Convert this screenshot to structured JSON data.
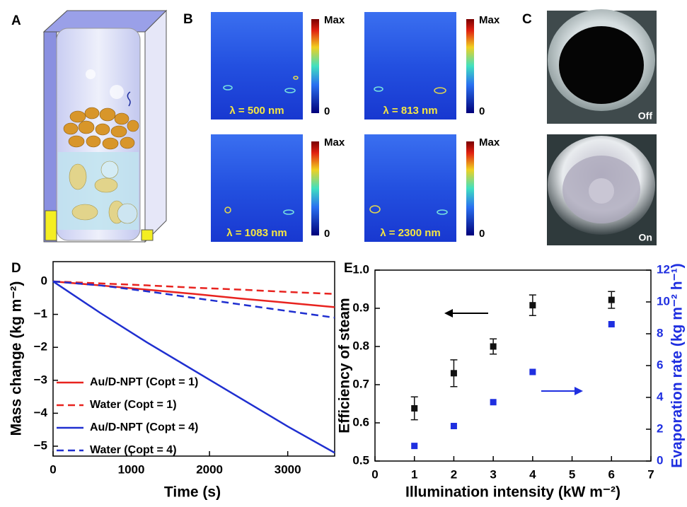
{
  "panel_labels": [
    "A",
    "B",
    "C",
    "D",
    "E"
  ],
  "panel_b": {
    "maps": [
      "λ = 500 nm",
      "λ = 813 nm",
      "λ = 1083 nm",
      "λ = 2300 nm"
    ],
    "colorbar": {
      "max": "Max",
      "min": "0"
    }
  },
  "panel_c": {
    "photos": [
      "Off",
      "On"
    ]
  },
  "chart_data": [
    {
      "type": "line",
      "xlabel": "Time (s)",
      "ylabel": "Mass change (kg m⁻²)",
      "x": [
        0,
        600,
        1200,
        1800,
        2400,
        3000,
        3600
      ],
      "series": [
        {
          "name": "Au/D-NPT (Copt = 1)",
          "color": "#e8231f",
          "style": "solid",
          "values": [
            0,
            -0.12,
            -0.25,
            -0.38,
            -0.52,
            -0.65,
            -0.78
          ]
        },
        {
          "name": "Water (Copt = 1)",
          "color": "#e8231f",
          "style": "dashed",
          "values": [
            0,
            -0.06,
            -0.12,
            -0.19,
            -0.25,
            -0.32,
            -0.38
          ]
        },
        {
          "name": "Au/D-NPT (Copt = 4)",
          "color": "#1f2fd0",
          "style": "solid",
          "values": [
            0,
            -0.95,
            -1.85,
            -2.7,
            -3.55,
            -4.4,
            -5.2
          ]
        },
        {
          "name": "Water (Copt = 4)",
          "color": "#1f2fd0",
          "style": "dashed",
          "values": [
            0,
            -0.12,
            -0.3,
            -0.5,
            -0.7,
            -0.9,
            -1.1
          ]
        }
      ],
      "xlim": [
        0,
        3600
      ],
      "xticks": [
        0,
        1000,
        2000,
        3000
      ],
      "ylim": [
        -5.3,
        0.6
      ],
      "yticks": [
        0,
        {
          "value": -1,
          "label": "−1"
        },
        {
          "value": -2,
          "label": "−2"
        },
        {
          "value": -3,
          "label": "−3"
        },
        {
          "value": -4,
          "label": "−4"
        },
        {
          "value": -5,
          "label": "−5"
        }
      ],
      "legend": "left"
    },
    {
      "type": "scatter",
      "xlabel": "Illumination intensity (kW m⁻²)",
      "ylabel": "Efficiency of steam",
      "y2label": "Evaporation rate (kg m⁻² h⁻¹)",
      "x": [
        1,
        2,
        3,
        4,
        6
      ],
      "series": [
        {
          "color": "#111111",
          "values": [
            0.638,
            0.73,
            0.8,
            0.908,
            0.922
          ],
          "errors": [
            0.03,
            0.035,
            0.02,
            0.027,
            0.022
          ]
        },
        {
          "color": "#1f2fe0",
          "axis": "y2",
          "values": [
            0.95,
            2.2,
            3.7,
            5.6,
            8.6
          ]
        }
      ],
      "xlim": [
        0,
        7
      ],
      "xticks": [
        0,
        1,
        2,
        3,
        4,
        5,
        6,
        7
      ],
      "ylim": [
        0.5,
        1.0
      ],
      "yticks": [
        0.5,
        0.6,
        0.7,
        0.8,
        0.9,
        {
          "value": 1.0,
          "label": "1.0"
        }
      ],
      "y2lim": [
        0,
        12
      ],
      "y2ticks": [
        0,
        2,
        4,
        6,
        8,
        10,
        12
      ],
      "y2color": "#1f2fe0"
    }
  ]
}
